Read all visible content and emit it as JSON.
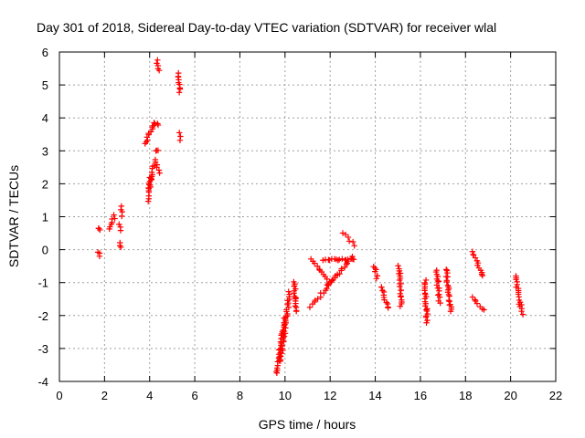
{
  "chart_data": {
    "type": "scatter",
    "title": "Day 301 of 2018, Sidereal Day-to-day VTEC variation (SDTVAR) for receiver wlal",
    "xlabel": "GPS time / hours",
    "ylabel": "SDTVAR / TECUs",
    "xlim": [
      0,
      22
    ],
    "ylim": [
      -4,
      6
    ],
    "xticks": [
      0,
      2,
      4,
      6,
      8,
      10,
      12,
      14,
      16,
      18,
      20,
      22
    ],
    "yticks": [
      -4,
      -3,
      -2,
      -1,
      0,
      1,
      2,
      3,
      4,
      5,
      6
    ],
    "grid": true,
    "marker": "+",
    "color": "#ff0000",
    "clusters": [
      {
        "x0": 1.75,
        "x1": 1.8,
        "y0": 0.65,
        "y1": 0.6
      },
      {
        "x0": 1.75,
        "x1": 1.8,
        "y0": -0.05,
        "y1": -0.18
      },
      {
        "x0": 2.2,
        "x1": 2.45,
        "y0": 0.6,
        "y1": 1.05
      },
      {
        "x0": 2.7,
        "x1": 2.8,
        "y0": 1.3,
        "y1": 1.05
      },
      {
        "x0": 2.65,
        "x1": 2.75,
        "y0": 0.75,
        "y1": 0.6
      },
      {
        "x0": 2.7,
        "x1": 2.75,
        "y0": 0.2,
        "y1": 0.1
      },
      {
        "x0": 3.8,
        "x1": 4.2,
        "y0": 3.2,
        "y1": 3.85
      },
      {
        "x0": 4.25,
        "x1": 4.4,
        "y0": 3.8,
        "y1": 3.8
      },
      {
        "x0": 3.9,
        "x1": 4.1,
        "y0": 1.5,
        "y1": 2.2
      },
      {
        "x0": 3.95,
        "x1": 4.25,
        "y0": 1.9,
        "y1": 2.7
      },
      {
        "x0": 4.3,
        "x1": 4.4,
        "y0": 3.0,
        "y1": 3.0
      },
      {
        "x0": 4.3,
        "x1": 4.45,
        "y0": 2.55,
        "y1": 2.3
      },
      {
        "x0": 4.35,
        "x1": 4.4,
        "y0": 5.75,
        "y1": 5.45
      },
      {
        "x0": 5.3,
        "x1": 5.35,
        "y0": 5.35,
        "y1": 4.8
      },
      {
        "x0": 5.3,
        "x1": 5.35,
        "y0": 3.55,
        "y1": 3.35
      },
      {
        "x0": 9.6,
        "x1": 10.0,
        "y0": -3.75,
        "y1": -2.1
      },
      {
        "x0": 9.8,
        "x1": 10.2,
        "y0": -3.4,
        "y1": -1.3
      },
      {
        "x0": 10.4,
        "x1": 10.5,
        "y0": -0.95,
        "y1": -1.9
      },
      {
        "x0": 11.15,
        "x1": 12.3,
        "y0": -1.75,
        "y1": -0.75
      },
      {
        "x0": 11.2,
        "x1": 11.9,
        "y0": -0.3,
        "y1": -0.9
      },
      {
        "x0": 11.7,
        "x1": 13.1,
        "y0": -0.3,
        "y1": -0.3
      },
      {
        "x0": 11.9,
        "x1": 13.0,
        "y0": -1.1,
        "y1": -0.2
      },
      {
        "x0": 12.6,
        "x1": 13.1,
        "y0": 0.5,
        "y1": 0.15
      },
      {
        "x0": 13.95,
        "x1": 14.1,
        "y0": -0.5,
        "y1": -0.9
      },
      {
        "x0": 14.3,
        "x1": 14.55,
        "y0": -1.1,
        "y1": -1.8
      },
      {
        "x0": 15.05,
        "x1": 15.15,
        "y0": -0.5,
        "y1": -1.7
      },
      {
        "x0": 16.2,
        "x1": 16.3,
        "y0": -0.95,
        "y1": -2.2
      },
      {
        "x0": 16.7,
        "x1": 16.85,
        "y0": -0.6,
        "y1": -1.6
      },
      {
        "x0": 17.15,
        "x1": 17.35,
        "y0": -0.6,
        "y1": -1.9
      },
      {
        "x0": 18.3,
        "x1": 18.8,
        "y0": -0.05,
        "y1": -0.8
      },
      {
        "x0": 18.3,
        "x1": 18.8,
        "y0": -1.45,
        "y1": -1.85
      },
      {
        "x0": 20.2,
        "x1": 20.5,
        "y0": -0.8,
        "y1": -1.95
      }
    ]
  }
}
